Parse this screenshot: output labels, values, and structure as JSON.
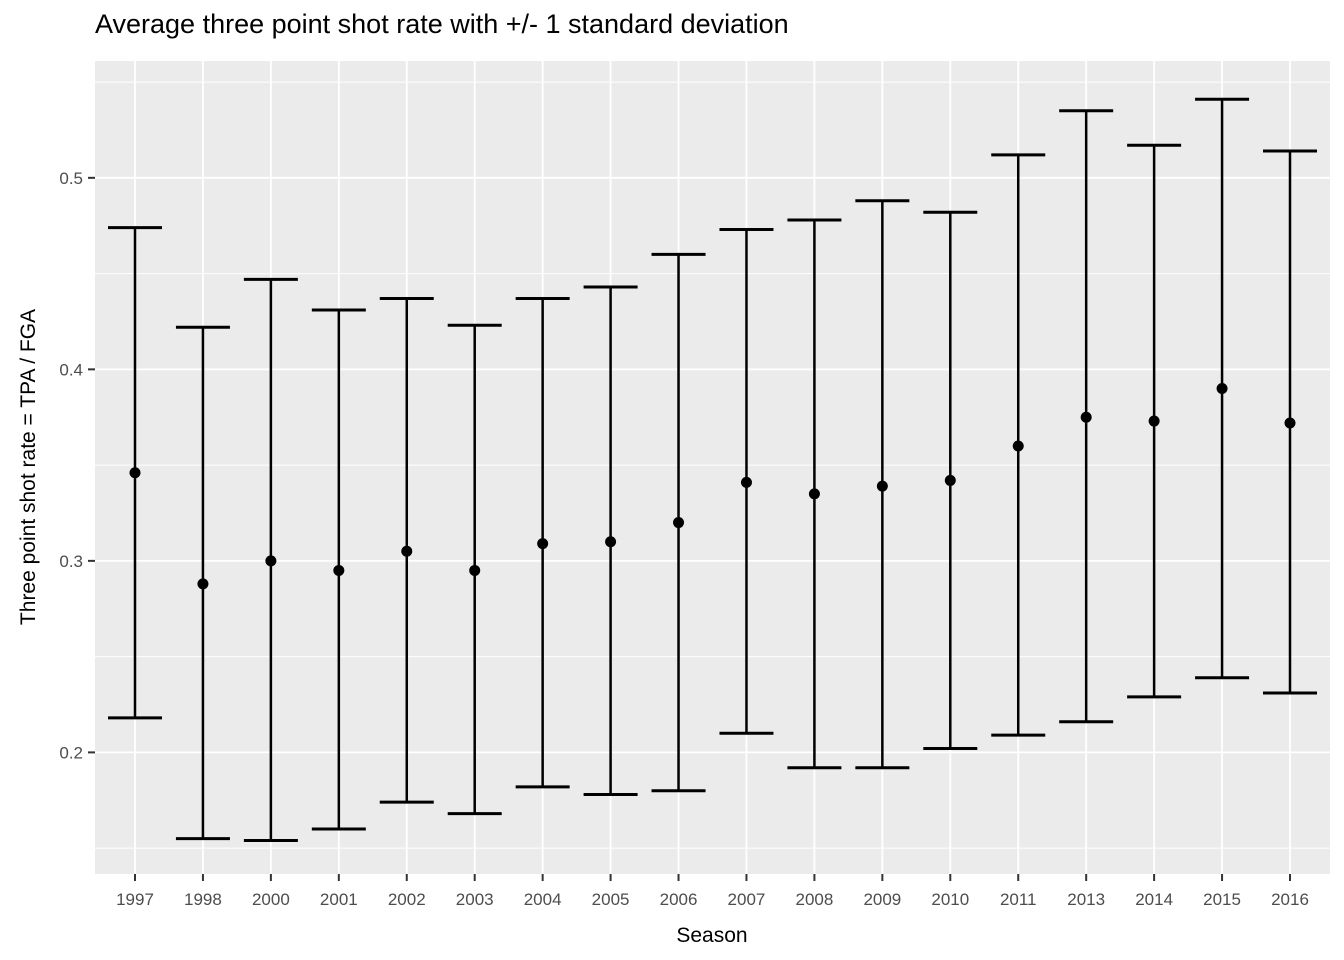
{
  "title": "Average three point shot rate with +/- 1 standard deviation",
  "chart_data": {
    "type": "scatter",
    "subtype": "point-with-errorbar",
    "title": "Average three point shot rate with +/- 1 standard deviation",
    "xlabel": "Season",
    "ylabel": "Three point shot rate = TPA / FGA",
    "categories": [
      "1997",
      "1998",
      "2000",
      "2001",
      "2002",
      "2003",
      "2004",
      "2005",
      "2006",
      "2007",
      "2008",
      "2009",
      "2010",
      "2011",
      "2013",
      "2014",
      "2015",
      "2016"
    ],
    "series": [
      {
        "name": "mean",
        "values": [
          0.346,
          0.288,
          0.3,
          0.295,
          0.305,
          0.295,
          0.309,
          0.31,
          0.32,
          0.341,
          0.335,
          0.339,
          0.342,
          0.36,
          0.375,
          0.373,
          0.39,
          0.372
        ]
      },
      {
        "name": "mean_minus_sd",
        "values": [
          0.218,
          0.155,
          0.154,
          0.16,
          0.174,
          0.168,
          0.182,
          0.178,
          0.18,
          0.21,
          0.192,
          0.192,
          0.202,
          0.209,
          0.216,
          0.229,
          0.239,
          0.231
        ]
      },
      {
        "name": "mean_plus_sd",
        "values": [
          0.474,
          0.422,
          0.447,
          0.431,
          0.437,
          0.423,
          0.437,
          0.443,
          0.46,
          0.473,
          0.478,
          0.488,
          0.482,
          0.512,
          0.535,
          0.517,
          0.541,
          0.514
        ]
      }
    ],
    "ylim": [
      0.1365,
      0.561
    ],
    "yticks": {
      "values": [
        0.2,
        0.3,
        0.4,
        0.5
      ],
      "labels": [
        "0.2",
        "0.3",
        "0.4",
        "0.5"
      ]
    },
    "yticks_minor": [
      0.15,
      0.25,
      0.35,
      0.45,
      0.55
    ],
    "grid": "white major+minor horizontal, white major vertical per category",
    "legend": "none"
  },
  "colors": {
    "page_background": "#FFFFFF",
    "panel_background": "#EBEBEB",
    "gridline": "#FFFFFF",
    "marker": "#000000",
    "tick_mark": "#333333",
    "tick_label": "#4D4D4D",
    "axis_title": "#000000",
    "title_text": "#000000"
  }
}
